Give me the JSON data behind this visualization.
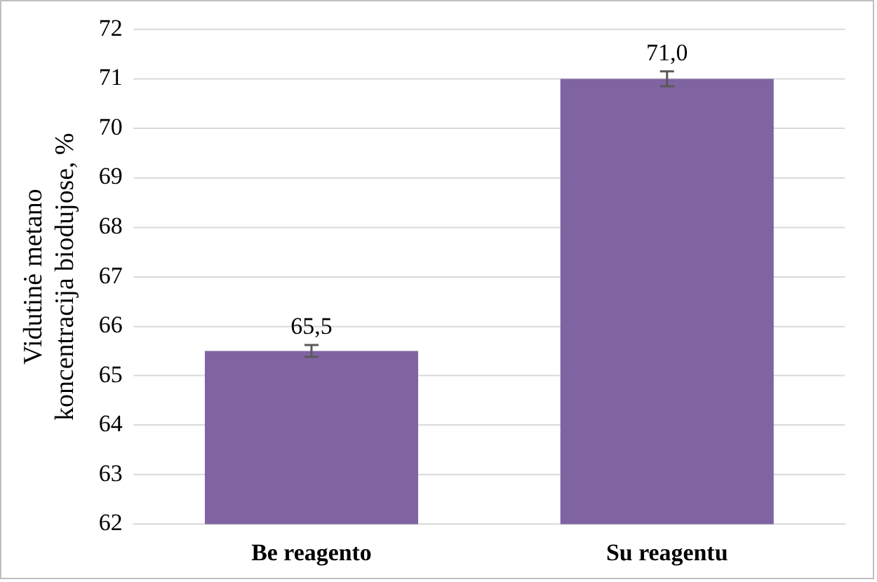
{
  "chart_data": {
    "type": "bar",
    "ylabel": "Vidutinė metano\nkoncentracija biodujose, %",
    "categories": [
      "Be reagento",
      "Su reagentu"
    ],
    "values": [
      65.5,
      71.0
    ],
    "color": "#8064a2",
    "errors": [
      0.12,
      0.15
    ],
    "value_labels": [
      "65,5",
      "71,0"
    ],
    "ylim": [
      62,
      72
    ],
    "yticks": [
      62,
      63,
      64,
      65,
      66,
      67,
      68,
      69,
      70,
      71,
      72
    ],
    "grid": "y",
    "legend": false
  }
}
